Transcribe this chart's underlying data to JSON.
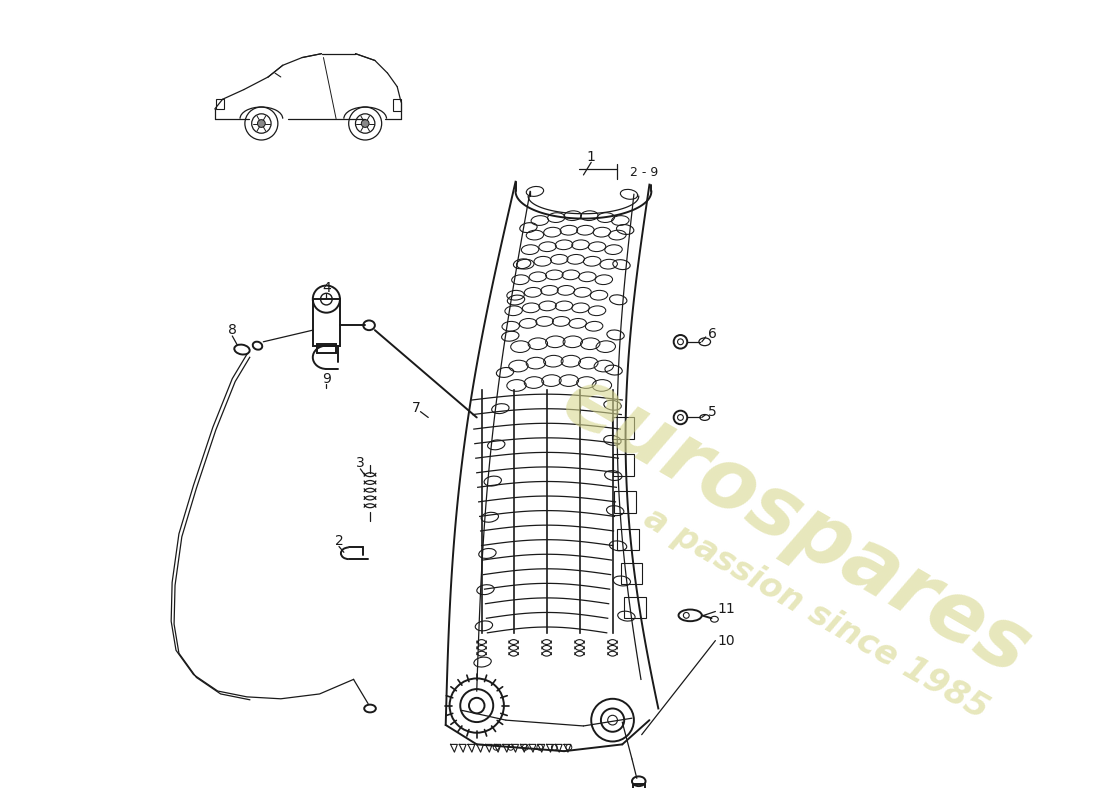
{
  "background_color": "#ffffff",
  "line_color": "#1a1a1a",
  "watermark1": "eurospares",
  "watermark2": "a passion since 1985",
  "wm_color": "#d4d4a0",
  "wm_alpha": 0.7
}
